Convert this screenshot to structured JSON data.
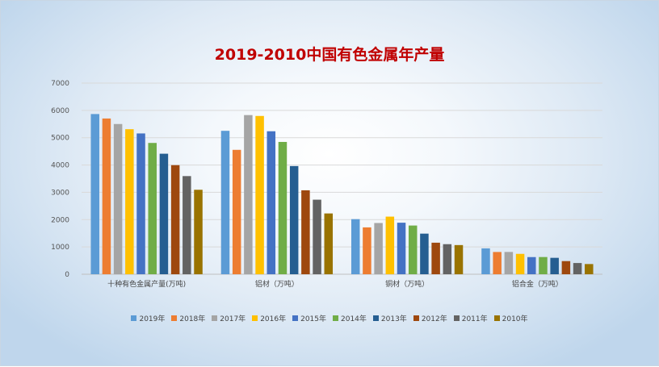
{
  "chart_data": {
    "type": "bar",
    "title": "2019-2010中国有色金属年产量",
    "categories": [
      "十种有色金属产量(万吨)",
      "铝材（万吨）",
      "铜材（万吨）",
      "铝合金（万吨）"
    ],
    "ylim": [
      0,
      7000
    ],
    "yticks": [
      0,
      1000,
      2000,
      3000,
      4000,
      5000,
      6000,
      7000
    ],
    "grid": true,
    "legend_position": "bottom",
    "series": [
      {
        "name": "2019年",
        "color": "#5b9bd5",
        "values": [
          5866,
          5252,
          2017,
          948
        ]
      },
      {
        "name": "2018年",
        "color": "#ed7d31",
        "values": [
          5703,
          4555,
          1716,
          815
        ]
      },
      {
        "name": "2017年",
        "color": "#a5a5a5",
        "values": [
          5501,
          5828,
          1876,
          816
        ]
      },
      {
        "name": "2016年",
        "color": "#ffc000",
        "values": [
          5311,
          5796,
          2110,
          746
        ]
      },
      {
        "name": "2015年",
        "color": "#4472c4",
        "values": [
          5156,
          5236,
          1887,
          628
        ]
      },
      {
        "name": "2014年",
        "color": "#70ad47",
        "values": [
          4808,
          4845,
          1784,
          630
        ]
      },
      {
        "name": "2013年",
        "color": "#255e91",
        "values": [
          4413,
          3962,
          1487,
          601
        ]
      },
      {
        "name": "2012年",
        "color": "#9e480e",
        "values": [
          3994,
          3074,
          1155,
          481
        ]
      },
      {
        "name": "2011年",
        "color": "#636363",
        "values": [
          3594,
          2730,
          1101,
          411
        ]
      },
      {
        "name": "2010年",
        "color": "#997300",
        "values": [
          3093,
          2226,
          1068,
          373
        ]
      }
    ]
  }
}
